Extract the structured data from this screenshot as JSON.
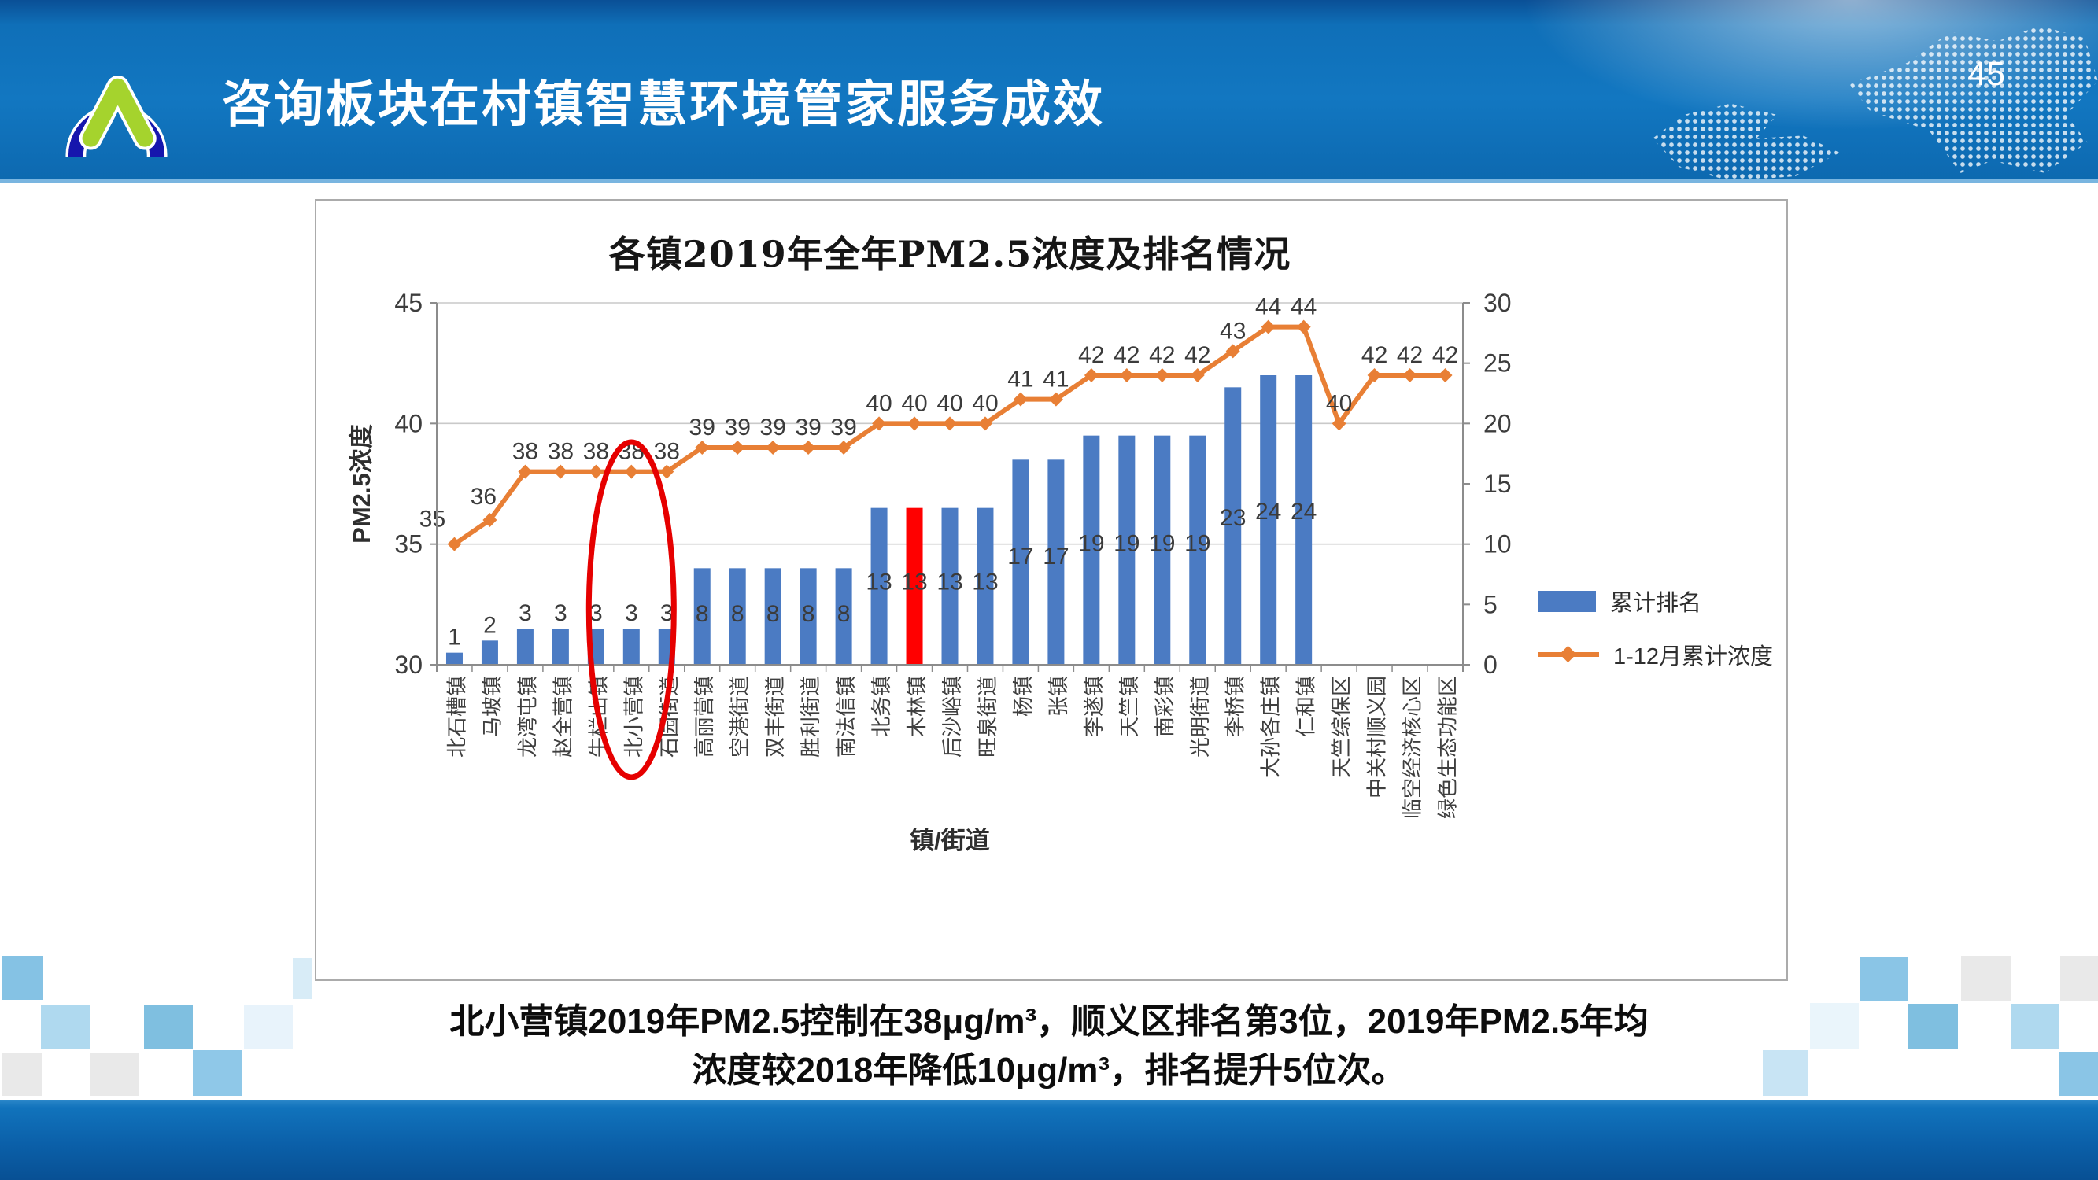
{
  "header": {
    "title": "咨询板块在村镇智慧环境管家服务成效",
    "page_number": "45"
  },
  "chart_data": {
    "type": "bar+line combo",
    "title": "各镇2019年全年PM2.5浓度及排名情况",
    "xlabel": "镇/街道",
    "ylabel_left": "PM2.5浓度",
    "categories": [
      "北石槽镇",
      "马坡镇",
      "龙湾屯镇",
      "赵全营镇",
      "牛栏山镇",
      "北小营镇",
      "石园街道",
      "高丽营镇",
      "空港街道",
      "双丰街道",
      "胜利街道",
      "南法信镇",
      "北务镇",
      "木林镇",
      "后沙峪镇",
      "旺泉街道",
      "杨镇",
      "张镇",
      "李遂镇",
      "天竺镇",
      "南彩镇",
      "光明街道",
      "李桥镇",
      "大孙各庄镇",
      "仁和镇",
      "天竺综保区",
      "中关村顺义园",
      "临空经济核心区",
      "绿色生态功能区"
    ],
    "series": [
      {
        "name": "累计排名",
        "type": "bar",
        "axis": "right",
        "color": "#4b7bc3",
        "highlight_index": 13,
        "highlight_color": "#ff0000",
        "values": [
          1,
          2,
          3,
          3,
          3,
          3,
          3,
          8,
          8,
          8,
          8,
          8,
          13,
          13,
          13,
          13,
          17,
          17,
          19,
          19,
          19,
          19,
          23,
          24,
          24,
          null,
          null,
          null,
          null
        ]
      },
      {
        "name": "1-12月累计浓度",
        "type": "line",
        "axis": "left",
        "color": "#e87f35",
        "values": [
          35,
          36,
          38,
          38,
          38,
          38,
          38,
          39,
          39,
          39,
          39,
          39,
          40,
          40,
          40,
          40,
          41,
          41,
          42,
          42,
          42,
          42,
          43,
          44,
          44,
          40,
          42,
          42,
          42
        ]
      }
    ],
    "left_axis": {
      "min": 30,
      "max": 45,
      "ticks": [
        30,
        35,
        40,
        45
      ]
    },
    "right_axis": {
      "min": 0,
      "max": 30,
      "ticks": [
        0,
        5,
        10,
        15,
        20,
        25,
        30
      ]
    },
    "legend_position": "right",
    "grid": "horizontal",
    "annotation": {
      "shape": "ellipse",
      "category": "北小营镇",
      "color": "#e60000"
    }
  },
  "caption": {
    "line1": "北小营镇2019年PM2.5控制在38μg/m³，顺义区排名第3位，2019年PM2.5年均",
    "line2": "浓度较2018年降低10μg/m³，排名提升5位次。"
  }
}
